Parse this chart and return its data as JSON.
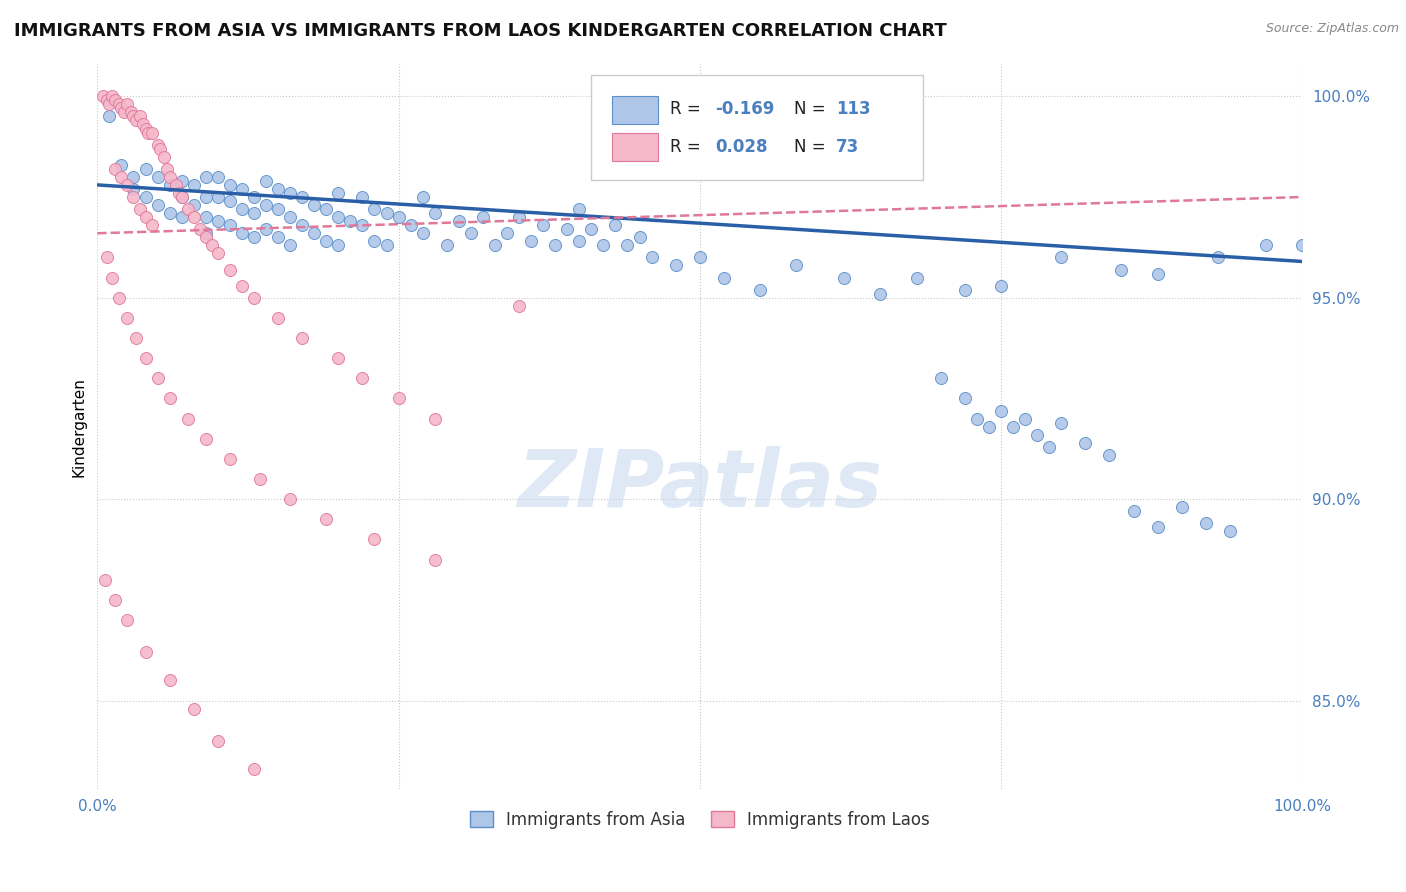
{
  "title": "IMMIGRANTS FROM ASIA VS IMMIGRANTS FROM LAOS KINDERGARTEN CORRELATION CHART",
  "source_text": "Source: ZipAtlas.com",
  "ylabel": "Kindergarten",
  "xlim": [
    0.0,
    1.0
  ],
  "ylim": [
    0.828,
    1.008
  ],
  "x_ticks": [
    0.0,
    0.25,
    0.5,
    0.75,
    1.0
  ],
  "x_tick_labels": [
    "0.0%",
    "",
    "",
    "",
    "100.0%"
  ],
  "y_ticks": [
    0.85,
    0.9,
    0.95,
    1.0
  ],
  "y_tick_labels": [
    "85.0%",
    "90.0%",
    "95.0%",
    "100.0%"
  ],
  "color_blue": "#aec6e8",
  "color_blue_edge": "#5b8fc9",
  "color_blue_line": "#2a5fa8",
  "color_pink": "#f5b8cb",
  "color_pink_edge": "#e07898",
  "color_pink_line": "#e07898",
  "color_text_blue": "#4a7fc0",
  "color_grid": "#c8c8c8",
  "watermark_color": "#c5d8ee",
  "background_color": "#ffffff",
  "title_fontsize": 13,
  "axis_label_fontsize": 11,
  "tick_fontsize": 11,
  "blue_line_x0": 0.0,
  "blue_line_x1": 1.0,
  "blue_line_y0": 0.978,
  "blue_line_y1": 0.959,
  "pink_line_x0": 0.0,
  "pink_line_x1": 1.0,
  "pink_line_y0": 0.966,
  "pink_line_y1": 0.975,
  "legend_label1": "Immigrants from Asia",
  "legend_label2": "Immigrants from Laos",
  "blue_x": [
    0.01,
    0.02,
    0.03,
    0.03,
    0.04,
    0.04,
    0.05,
    0.05,
    0.06,
    0.06,
    0.07,
    0.07,
    0.07,
    0.08,
    0.08,
    0.09,
    0.09,
    0.09,
    0.09,
    0.1,
    0.1,
    0.1,
    0.11,
    0.11,
    0.11,
    0.12,
    0.12,
    0.12,
    0.13,
    0.13,
    0.13,
    0.14,
    0.14,
    0.14,
    0.15,
    0.15,
    0.15,
    0.16,
    0.16,
    0.16,
    0.17,
    0.17,
    0.18,
    0.18,
    0.19,
    0.19,
    0.2,
    0.2,
    0.2,
    0.21,
    0.22,
    0.22,
    0.23,
    0.23,
    0.24,
    0.24,
    0.25,
    0.26,
    0.27,
    0.27,
    0.28,
    0.29,
    0.3,
    0.31,
    0.32,
    0.33,
    0.34,
    0.35,
    0.36,
    0.37,
    0.38,
    0.39,
    0.4,
    0.4,
    0.41,
    0.42,
    0.43,
    0.44,
    0.45,
    0.46,
    0.48,
    0.5,
    0.52,
    0.55,
    0.58,
    0.62,
    0.65,
    0.68,
    0.72,
    0.75,
    0.8,
    0.85,
    0.88,
    0.93,
    0.97,
    1.0,
    0.7,
    0.72,
    0.73,
    0.74,
    0.75,
    0.76,
    0.77,
    0.78,
    0.79,
    0.8,
    0.82,
    0.84,
    0.86,
    0.88,
    0.9,
    0.92,
    0.94
  ],
  "blue_y": [
    0.995,
    0.983,
    0.98,
    0.977,
    0.982,
    0.975,
    0.98,
    0.973,
    0.978,
    0.971,
    0.979,
    0.975,
    0.97,
    0.978,
    0.973,
    0.98,
    0.975,
    0.97,
    0.966,
    0.98,
    0.975,
    0.969,
    0.978,
    0.974,
    0.968,
    0.977,
    0.972,
    0.966,
    0.975,
    0.971,
    0.965,
    0.979,
    0.973,
    0.967,
    0.977,
    0.972,
    0.965,
    0.976,
    0.97,
    0.963,
    0.975,
    0.968,
    0.973,
    0.966,
    0.972,
    0.964,
    0.976,
    0.97,
    0.963,
    0.969,
    0.975,
    0.968,
    0.972,
    0.964,
    0.971,
    0.963,
    0.97,
    0.968,
    0.975,
    0.966,
    0.971,
    0.963,
    0.969,
    0.966,
    0.97,
    0.963,
    0.966,
    0.97,
    0.964,
    0.968,
    0.963,
    0.967,
    0.972,
    0.964,
    0.967,
    0.963,
    0.968,
    0.963,
    0.965,
    0.96,
    0.958,
    0.96,
    0.955,
    0.952,
    0.958,
    0.955,
    0.951,
    0.955,
    0.952,
    0.953,
    0.96,
    0.957,
    0.956,
    0.96,
    0.963,
    0.963,
    0.93,
    0.925,
    0.92,
    0.918,
    0.922,
    0.918,
    0.92,
    0.916,
    0.913,
    0.919,
    0.914,
    0.911,
    0.897,
    0.893,
    0.898,
    0.894,
    0.892
  ],
  "pink_x": [
    0.005,
    0.008,
    0.01,
    0.012,
    0.015,
    0.015,
    0.018,
    0.02,
    0.02,
    0.022,
    0.025,
    0.025,
    0.028,
    0.03,
    0.03,
    0.032,
    0.035,
    0.035,
    0.038,
    0.04,
    0.04,
    0.042,
    0.045,
    0.045,
    0.05,
    0.052,
    0.055,
    0.058,
    0.06,
    0.065,
    0.068,
    0.07,
    0.075,
    0.08,
    0.085,
    0.09,
    0.095,
    0.1,
    0.11,
    0.12,
    0.13,
    0.15,
    0.17,
    0.2,
    0.22,
    0.25,
    0.28,
    0.35,
    0.008,
    0.012,
    0.018,
    0.025,
    0.032,
    0.04,
    0.05,
    0.06,
    0.075,
    0.09,
    0.11,
    0.135,
    0.16,
    0.19,
    0.23,
    0.28,
    0.006,
    0.015,
    0.025,
    0.04,
    0.06,
    0.08,
    0.1,
    0.13
  ],
  "pink_y": [
    1.0,
    0.999,
    0.998,
    1.0,
    0.999,
    0.982,
    0.998,
    0.997,
    0.98,
    0.996,
    0.998,
    0.978,
    0.996,
    0.995,
    0.975,
    0.994,
    0.995,
    0.972,
    0.993,
    0.992,
    0.97,
    0.991,
    0.991,
    0.968,
    0.988,
    0.987,
    0.985,
    0.982,
    0.98,
    0.978,
    0.976,
    0.975,
    0.972,
    0.97,
    0.967,
    0.965,
    0.963,
    0.961,
    0.957,
    0.953,
    0.95,
    0.945,
    0.94,
    0.935,
    0.93,
    0.925,
    0.92,
    0.948,
    0.96,
    0.955,
    0.95,
    0.945,
    0.94,
    0.935,
    0.93,
    0.925,
    0.92,
    0.915,
    0.91,
    0.905,
    0.9,
    0.895,
    0.89,
    0.885,
    0.88,
    0.875,
    0.87,
    0.862,
    0.855,
    0.848,
    0.84,
    0.833
  ]
}
